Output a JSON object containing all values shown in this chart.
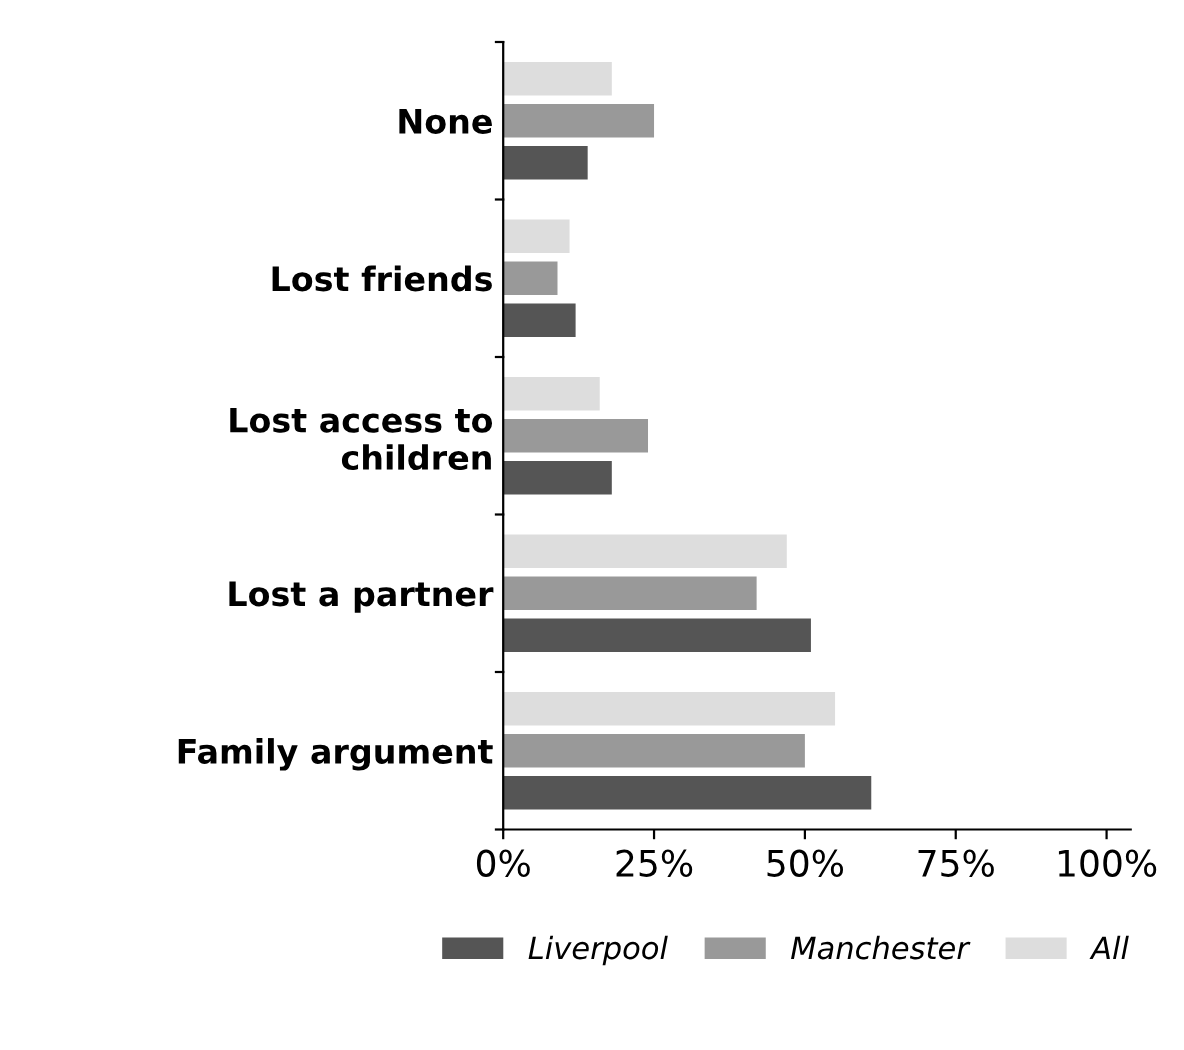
{
  "chart_data": {
    "type": "bar",
    "orientation": "horizontal",
    "categories": [
      "None",
      "Lost friends",
      "Lost access to\nchildren",
      "Lost a partner",
      "Family argument"
    ],
    "series": [
      {
        "name": "Liverpool",
        "color": "#555555",
        "values": [
          14,
          12,
          18,
          51,
          61
        ]
      },
      {
        "name": "Manchester",
        "color": "#999999",
        "values": [
          25,
          9,
          24,
          42,
          50
        ]
      },
      {
        "name": "All",
        "color": "#dddddd",
        "values": [
          18,
          11,
          16,
          47,
          55
        ]
      }
    ],
    "xlim": [
      0,
      104
    ],
    "xticks": [
      {
        "value": 0,
        "label": "0%"
      },
      {
        "value": 25,
        "label": "25%"
      },
      {
        "value": 50,
        "label": "50%"
      },
      {
        "value": 75,
        "label": "75%"
      },
      {
        "value": 100,
        "label": "100%"
      }
    ],
    "grid": false,
    "legend": "bottom"
  }
}
